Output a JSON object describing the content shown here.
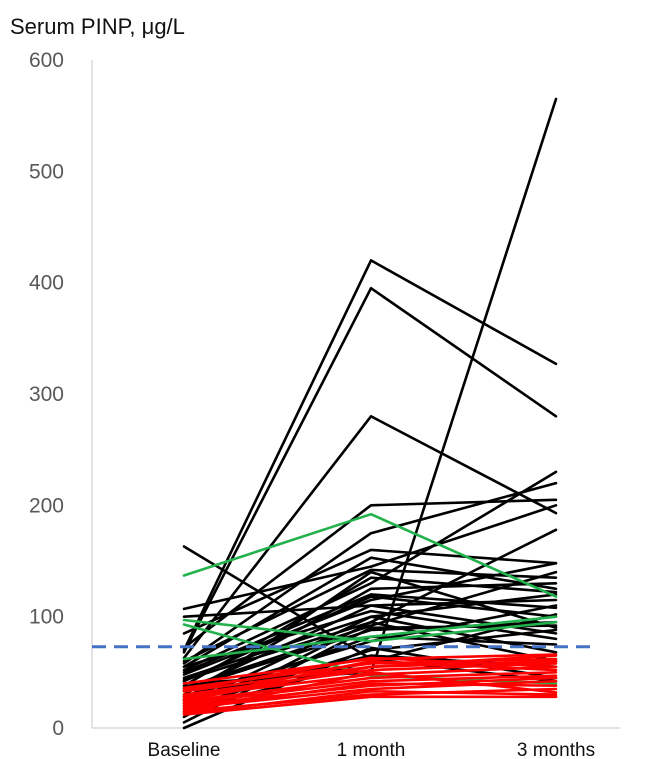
{
  "chart_data": {
    "type": "line",
    "title": "",
    "ylabel": "Serum PINP, μg/L",
    "xlabel": "",
    "categories": [
      "Baseline",
      "1 month",
      "3 months"
    ],
    "ylim": [
      0,
      600
    ],
    "yticks": [
      0,
      100,
      200,
      300,
      400,
      500,
      600
    ],
    "grid": false,
    "reference_line": {
      "y": 73,
      "style": "dashed",
      "color": "#4472C4"
    },
    "groups": [
      {
        "color": "#000000",
        "series": [
          {
            "values": [
              163,
              62,
              42
            ]
          },
          {
            "values": [
              107,
              145,
              200
            ]
          },
          {
            "values": [
              100,
              110,
              115
            ]
          },
          {
            "values": [
              85,
              160,
              148
            ]
          },
          {
            "values": [
              72,
              200,
              205
            ]
          },
          {
            "values": [
              70,
              420,
              327
            ]
          },
          {
            "values": [
              68,
              395,
              280
            ]
          },
          {
            "values": [
              63,
              280,
              193
            ]
          },
          {
            "values": [
              60,
              142,
              135
            ]
          },
          {
            "values": [
              58,
              175,
              220
            ]
          },
          {
            "values": [
              55,
              153,
              125
            ]
          },
          {
            "values": [
              52,
              130,
              230
            ]
          },
          {
            "values": [
              50,
              120,
              108
            ]
          },
          {
            "values": [
              48,
              115,
              148
            ]
          },
          {
            "values": [
              45,
              100,
              120
            ]
          },
          {
            "values": [
              43,
              95,
              178
            ]
          },
          {
            "values": [
              40,
              50,
              565
            ]
          },
          {
            "values": [
              38,
              135,
              122
            ]
          },
          {
            "values": [
              35,
              88,
              95
            ]
          },
          {
            "values": [
              33,
              110,
              85
            ]
          },
          {
            "values": [
              30,
              125,
              130
            ]
          },
          {
            "values": [
              28,
              78,
              110
            ]
          },
          {
            "values": [
              25,
              140,
              90
            ]
          },
          {
            "values": [
              22,
              82,
              75
            ]
          },
          {
            "values": [
              20,
              100,
              68
            ]
          },
          {
            "values": [
              15,
              60,
              102
            ]
          },
          {
            "values": [
              10,
              95,
              60
            ]
          },
          {
            "values": [
              5,
              90,
              92
            ]
          },
          {
            "values": [
              0,
              72,
              45
            ]
          },
          {
            "values": [
              55,
              105,
              80
            ]
          },
          {
            "values": [
              42,
              118,
              100
            ]
          },
          {
            "values": [
              36,
              92,
              140
            ]
          },
          {
            "values": [
              26,
              65,
              55
            ]
          },
          {
            "values": [
              18,
              70,
              88
            ]
          }
        ]
      },
      {
        "color": "#22B14C",
        "series": [
          {
            "values": [
              137,
              192,
              118
            ]
          },
          {
            "values": [
              97,
              78,
              95
            ]
          },
          {
            "values": [
              93,
              47,
              40
            ]
          },
          {
            "values": [
              62,
              82,
              100
            ]
          }
        ]
      },
      {
        "color": "#FF0000",
        "series": [
          {
            "values": [
              40,
              62,
              66
            ]
          },
          {
            "values": [
              36,
              58,
              62
            ]
          },
          {
            "values": [
              33,
              55,
              60
            ]
          },
          {
            "values": [
              30,
              52,
              58
            ]
          },
          {
            "values": [
              28,
              48,
              55
            ]
          },
          {
            "values": [
              26,
              60,
              52
            ]
          },
          {
            "values": [
              24,
              45,
              50
            ]
          },
          {
            "values": [
              22,
              42,
              47
            ]
          },
          {
            "values": [
              20,
              38,
              45
            ]
          },
          {
            "values": [
              18,
              35,
              42
            ]
          },
          {
            "values": [
              17,
              40,
              38
            ]
          },
          {
            "values": [
              15,
              30,
              35
            ]
          },
          {
            "values": [
              14,
              50,
              32
            ]
          },
          {
            "values": [
              13,
              33,
              30
            ]
          },
          {
            "values": [
              12,
              28,
              28
            ]
          },
          {
            "values": [
              25,
              55,
              65
            ]
          },
          {
            "values": [
              34,
              63,
              55
            ]
          }
        ]
      }
    ]
  }
}
